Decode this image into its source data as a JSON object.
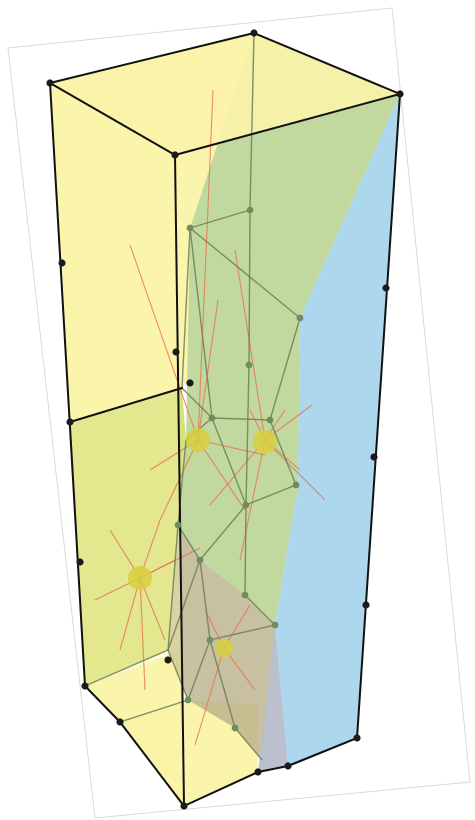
{
  "diagram": {
    "kind": "3D polyhedral cell decomposition inside a rectangular box",
    "colors": {
      "background": "#ffffff",
      "page_border": "#d9d9d9",
      "cell_yellow": "#fbf3a8",
      "cell_green": "#b6d28e",
      "cell_olive": "#cfdc6a",
      "cell_blue": "#a8d5ec",
      "cell_taupe": "#b9b08a",
      "cell_grey": "#b8bccb",
      "edge": "#111111",
      "inner_edge": "#6b7f55",
      "ray": "#e8704e",
      "site": "#d7cf3e",
      "vertex": "#1b1b1b",
      "green_vertex": "#6f8c5a"
    }
  }
}
